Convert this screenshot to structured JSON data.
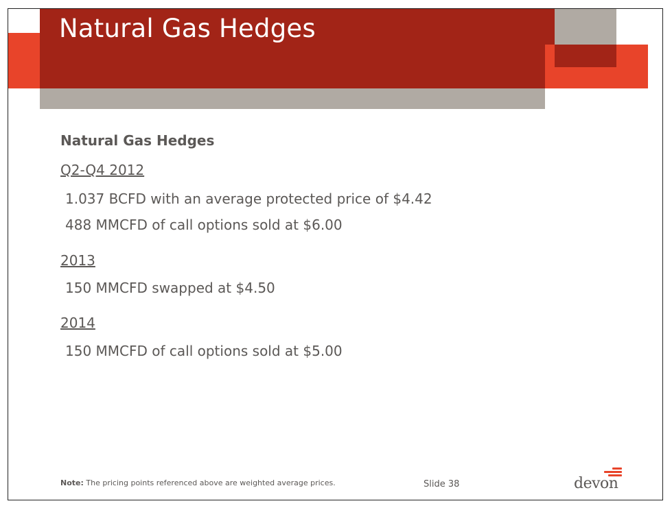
{
  "slide": {
    "title": "Natural Gas Hedges",
    "subheading": "Natural Gas Hedges",
    "sections": [
      {
        "label": "Q2-Q4 2012",
        "items": [
          "1.037 BCFD with an average protected price of $4.42",
          "488 MMCFD of call options sold at $6.00"
        ]
      },
      {
        "label": "2013",
        "items": [
          "150 MMCFD swapped at $4.50"
        ]
      },
      {
        "label": "2014",
        "items": [
          "150 MMCFD of call options sold at $5.00"
        ]
      }
    ],
    "note_label": "Note:",
    "note_text": " The pricing points referenced above are weighted average prices.",
    "slide_number": "Slide 38",
    "logo_text": "devon"
  },
  "colors": {
    "header_dark_red": "#a22417",
    "accent_orange": "#e8442a",
    "accent_gray": "#b0aaa3",
    "text_gray": "#5b5856"
  }
}
